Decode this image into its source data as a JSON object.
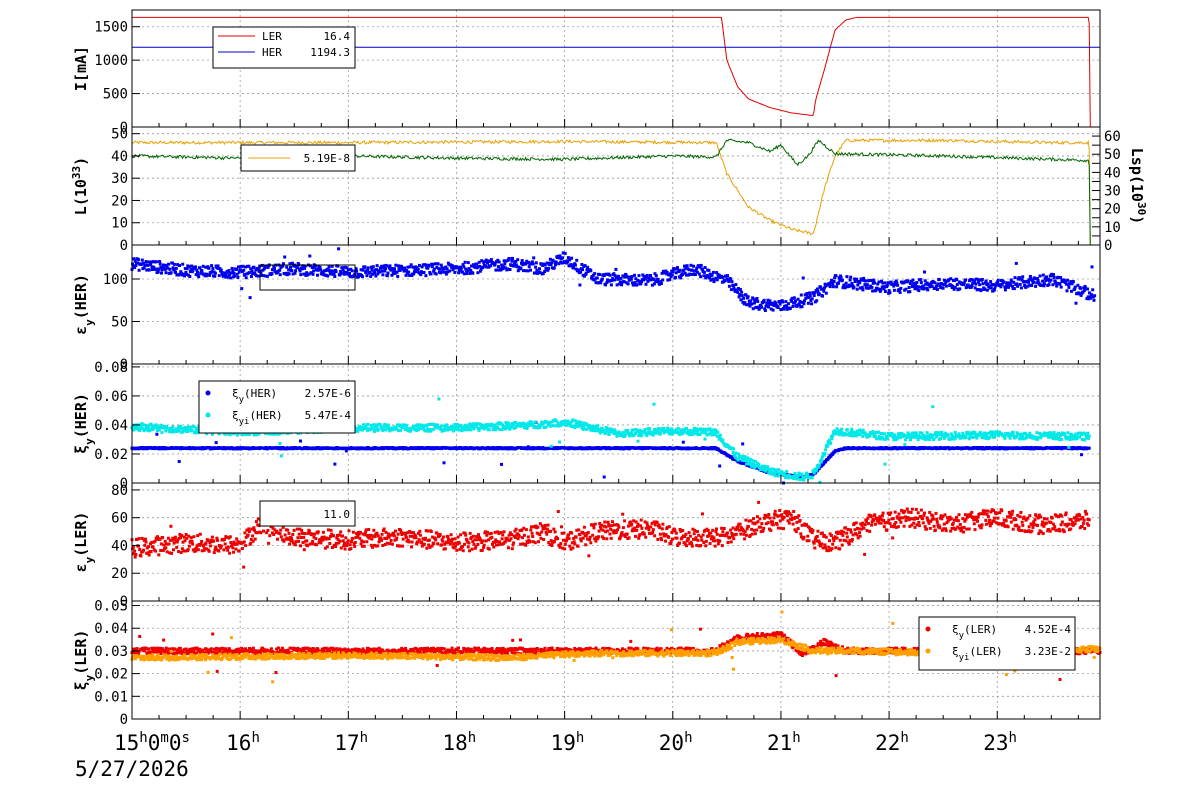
{
  "chart_data": {
    "type": "line",
    "x_axis": {
      "tick_labels": [
        "15h0m0s",
        "16h",
        "17h",
        "18h",
        "19h",
        "20h",
        "21h",
        "22h",
        "23h"
      ],
      "range_hours": [
        15.0,
        23.95
      ],
      "date": "5/27/2026"
    },
    "panels": [
      {
        "id": "current",
        "ylabel": "I[mA]",
        "ylim": [
          0,
          1750
        ],
        "yticks": [
          0,
          500,
          1000,
          1500
        ],
        "series": [
          {
            "name": "LER",
            "legend_value": "16.4",
            "color": "#e00000",
            "points": [
              [
                15.0,
                1640
              ],
              [
                20.45,
                1640
              ],
              [
                20.5,
                1000
              ],
              [
                20.6,
                600
              ],
              [
                20.7,
                420
              ],
              [
                20.9,
                290
              ],
              [
                21.1,
                210
              ],
              [
                21.3,
                170
              ],
              [
                21.32,
                400
              ],
              [
                21.4,
                850
              ],
              [
                21.45,
                1150
              ],
              [
                21.5,
                1450
              ],
              [
                21.6,
                1600
              ],
              [
                21.7,
                1640
              ],
              [
                23.85,
                1640
              ],
              [
                23.86,
                0
              ]
            ]
          },
          {
            "name": "HER",
            "legend_value": "1194.3",
            "color": "#0000cc",
            "points": [
              [
                15.0,
                1194
              ],
              [
                23.95,
                1194
              ]
            ]
          }
        ]
      },
      {
        "id": "luminosity",
        "ylabel": "L(10^33)",
        "ylabel_right": "Lsp(10^30)",
        "ylim": [
          0,
          53
        ],
        "yticks": [
          0,
          10,
          20,
          30,
          40,
          50
        ],
        "yticks_right": [
          0,
          5,
          10,
          15,
          20,
          25,
          30,
          35,
          40,
          45,
          50,
          55,
          60
        ],
        "legend_value": "5.19E-8",
        "series": [
          {
            "name": "",
            "color": "#e8a000",
            "points": [
              [
                15.0,
                46
              ],
              [
                17.0,
                46
              ],
              [
                19.0,
                46.5
              ],
              [
                20.4,
                46
              ],
              [
                20.5,
                32
              ],
              [
                20.7,
                17
              ],
              [
                20.9,
                11
              ],
              [
                21.1,
                7
              ],
              [
                21.3,
                5
              ],
              [
                21.4,
                25
              ],
              [
                21.5,
                40
              ],
              [
                21.6,
                47
              ],
              [
                22.5,
                47
              ],
              [
                23.5,
                46
              ],
              [
                23.85,
                46
              ],
              [
                23.86,
                0
              ]
            ]
          },
          {
            "name": "",
            "color": "#006600",
            "points": [
              [
                15.0,
                40
              ],
              [
                16.0,
                39
              ],
              [
                17.0,
                40
              ],
              [
                18.0,
                39
              ],
              [
                19.0,
                38.5
              ],
              [
                20.0,
                40
              ],
              [
                20.4,
                39.5
              ],
              [
                20.5,
                47
              ],
              [
                20.7,
                46
              ],
              [
                20.9,
                42
              ],
              [
                21.0,
                45
              ],
              [
                21.15,
                36
              ],
              [
                21.25,
                40
              ],
              [
                21.35,
                47
              ],
              [
                21.5,
                41
              ],
              [
                22.5,
                40
              ],
              [
                23.85,
                38
              ],
              [
                23.86,
                0
              ]
            ]
          }
        ]
      },
      {
        "id": "emit_her",
        "ylabel": "εy(HER)",
        "ylim": [
          0,
          140
        ],
        "yticks": [
          0,
          50,
          100
        ],
        "series": [
          {
            "name": "",
            "color": "#0000ee",
            "points": [
              [
                15.0,
                118
              ],
              [
                15.5,
                110
              ],
              [
                16.0,
                108
              ],
              [
                16.5,
                112
              ],
              [
                17.0,
                108
              ],
              [
                17.5,
                110
              ],
              [
                18.0,
                112
              ],
              [
                18.5,
                118
              ],
              [
                18.8,
                112
              ],
              [
                19.0,
                125
              ],
              [
                19.3,
                100
              ],
              [
                19.8,
                98
              ],
              [
                20.2,
                112
              ],
              [
                20.5,
                98
              ],
              [
                20.7,
                72
              ],
              [
                21.0,
                68
              ],
              [
                21.3,
                78
              ],
              [
                21.5,
                98
              ],
              [
                22.0,
                90
              ],
              [
                22.5,
                95
              ],
              [
                23.0,
                92
              ],
              [
                23.5,
                100
              ],
              [
                23.9,
                80
              ]
            ]
          }
        ]
      },
      {
        "id": "tune_her",
        "ylabel": "ξy(HER)",
        "ylim": [
          0,
          0.082
        ],
        "yticks": [
          0,
          0.02,
          0.04,
          0.06,
          0.08
        ],
        "ytick_labels": [
          "0",
          "0.02",
          "0.04",
          "0.06",
          "0.08"
        ],
        "series": [
          {
            "name": "ξy(HER)",
            "legend_value": "2.57E-6",
            "color": "#0000ee",
            "points": [
              [
                15.0,
                0.024
              ],
              [
                20.4,
                0.024
              ],
              [
                20.6,
                0.015
              ],
              [
                20.9,
                0.007
              ],
              [
                21.2,
                0.004
              ],
              [
                21.3,
                0.006
              ],
              [
                21.5,
                0.022
              ],
              [
                21.6,
                0.024
              ],
              [
                23.85,
                0.024
              ]
            ]
          },
          {
            "name": "ξyi(HER)",
            "legend_value": "5.47E-4",
            "color": "#00e8e8",
            "points": [
              [
                15.0,
                0.039
              ],
              [
                16.0,
                0.035
              ],
              [
                17.0,
                0.038
              ],
              [
                18.0,
                0.038
              ],
              [
                18.7,
                0.04
              ],
              [
                19.0,
                0.042
              ],
              [
                19.5,
                0.034
              ],
              [
                20.0,
                0.036
              ],
              [
                20.4,
                0.035
              ],
              [
                20.6,
                0.018
              ],
              [
                20.9,
                0.008
              ],
              [
                21.2,
                0.004
              ],
              [
                21.3,
                0.006
              ],
              [
                21.5,
                0.036
              ],
              [
                22.0,
                0.032
              ],
              [
                23.0,
                0.033
              ],
              [
                23.85,
                0.032
              ]
            ]
          }
        ]
      },
      {
        "id": "emit_ler",
        "ylabel": "εy(LER)",
        "ylim": [
          0,
          85
        ],
        "yticks": [
          0,
          20,
          40,
          60,
          80
        ],
        "legend_value": "11.0",
        "series": [
          {
            "name": "",
            "color": "#ee0000",
            "points": [
              [
                15.0,
                38
              ],
              [
                15.5,
                42
              ],
              [
                16.0,
                40
              ],
              [
                16.2,
                56
              ],
              [
                16.5,
                46
              ],
              [
                17.0,
                44
              ],
              [
                17.5,
                46
              ],
              [
                18.0,
                42
              ],
              [
                18.5,
                44
              ],
              [
                18.8,
                50
              ],
              [
                19.0,
                42
              ],
              [
                19.3,
                50
              ],
              [
                19.8,
                52
              ],
              [
                20.0,
                46
              ],
              [
                20.5,
                46
              ],
              [
                20.8,
                56
              ],
              [
                21.1,
                60
              ],
              [
                21.3,
                44
              ],
              [
                21.5,
                42
              ],
              [
                21.8,
                55
              ],
              [
                22.2,
                60
              ],
              [
                22.6,
                55
              ],
              [
                23.0,
                60
              ],
              [
                23.4,
                55
              ],
              [
                23.85,
                58
              ]
            ]
          }
        ]
      },
      {
        "id": "tune_ler",
        "ylabel": "ξy(LER)",
        "ylim": [
          0,
          0.052
        ],
        "yticks": [
          0,
          0.01,
          0.02,
          0.03,
          0.04,
          0.05
        ],
        "ytick_labels": [
          "0",
          "0.01",
          "0.02",
          "0.03",
          "0.04",
          "0.05"
        ],
        "series": [
          {
            "name": "ξy(LER)",
            "legend_value": "4.52E-4",
            "color": "#ee0000",
            "points": [
              [
                15.0,
                0.03
              ],
              [
                20.4,
                0.03
              ],
              [
                20.6,
                0.036
              ],
              [
                21.0,
                0.037
              ],
              [
                21.2,
                0.029
              ],
              [
                21.4,
                0.034
              ],
              [
                21.6,
                0.03
              ],
              [
                23.95,
                0.03
              ]
            ]
          },
          {
            "name": "ξyi(LER)",
            "legend_value": "3.23E-2",
            "color": "#ffa000",
            "points": [
              [
                15.0,
                0.027
              ],
              [
                17.0,
                0.028
              ],
              [
                18.5,
                0.027
              ],
              [
                19.2,
                0.029
              ],
              [
                20.4,
                0.029
              ],
              [
                20.6,
                0.034
              ],
              [
                21.0,
                0.035
              ],
              [
                21.3,
                0.03
              ],
              [
                21.6,
                0.03
              ],
              [
                22.5,
                0.029
              ],
              [
                23.5,
                0.03
              ],
              [
                23.95,
                0.031
              ]
            ]
          }
        ]
      }
    ]
  }
}
